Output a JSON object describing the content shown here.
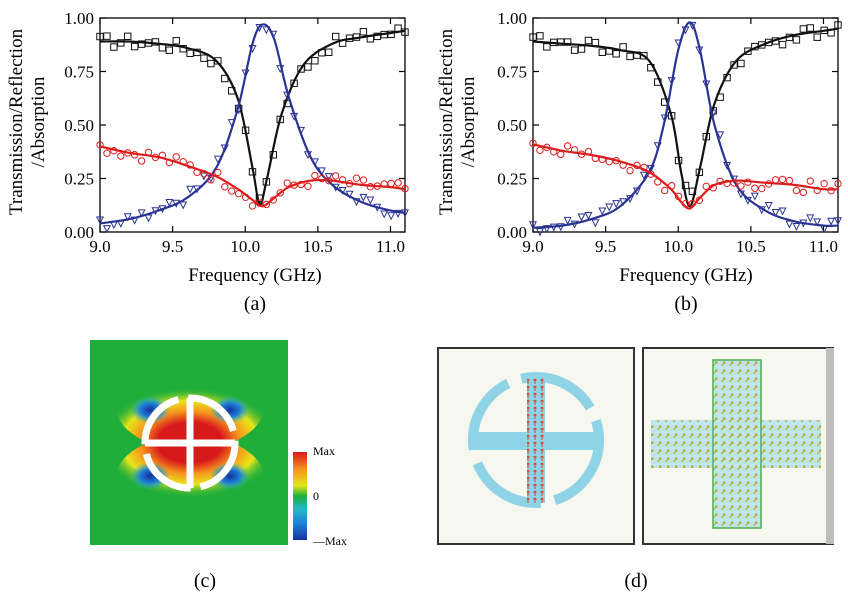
{
  "chart_data": [
    {
      "type": "line",
      "panel_label": "(a)",
      "xlabel": "Frequency (GHz)",
      "ylabel_line1": "Transmission/Reflection",
      "ylabel_line2": "/Absorption",
      "xlim": [
        9.0,
        11.1
      ],
      "ylim": [
        0.0,
        1.0
      ],
      "xticks": [
        "9.0",
        "9.5",
        "10.0",
        "10.5",
        "11.0"
      ],
      "yticks": [
        "0.00",
        "0.25",
        "0.50",
        "0.75",
        "1.00"
      ],
      "grid": false,
      "legend": "none",
      "series": [
        {
          "color": "#111111",
          "marker": "square",
          "x": [
            9.0,
            9.2,
            9.4,
            9.6,
            9.8,
            9.95,
            10.05,
            10.1,
            10.15,
            10.25,
            10.4,
            10.6,
            10.8,
            11.0,
            11.1
          ],
          "y": [
            0.89,
            0.89,
            0.88,
            0.86,
            0.8,
            0.62,
            0.3,
            0.13,
            0.25,
            0.55,
            0.78,
            0.88,
            0.91,
            0.93,
            0.94
          ]
        },
        {
          "color": "#2a3393",
          "marker": "triangle-down",
          "x": [
            9.0,
            9.2,
            9.4,
            9.6,
            9.8,
            9.95,
            10.05,
            10.12,
            10.2,
            10.3,
            10.45,
            10.6,
            10.8,
            11.0,
            11.1
          ],
          "y": [
            0.04,
            0.06,
            0.1,
            0.16,
            0.3,
            0.58,
            0.88,
            0.97,
            0.9,
            0.63,
            0.35,
            0.22,
            0.14,
            0.1,
            0.09
          ]
        },
        {
          "color": "#dd1c1c",
          "marker": "circle",
          "x": [
            9.0,
            9.2,
            9.4,
            9.6,
            9.8,
            9.95,
            10.05,
            10.12,
            10.2,
            10.3,
            10.45,
            10.6,
            10.8,
            11.0,
            11.1
          ],
          "y": [
            0.4,
            0.37,
            0.35,
            0.31,
            0.26,
            0.2,
            0.15,
            0.12,
            0.16,
            0.21,
            0.24,
            0.24,
            0.22,
            0.21,
            0.2
          ]
        }
      ]
    },
    {
      "type": "line",
      "panel_label": "(b)",
      "xlabel": "Frequency (GHz)",
      "ylabel_line1": "Transmission/Reflection",
      "ylabel_line2": "/Absorption",
      "xlim": [
        9.0,
        11.1
      ],
      "ylim": [
        0.0,
        1.0
      ],
      "xticks": [
        "9.0",
        "9.5",
        "10.0",
        "10.5",
        "11.0"
      ],
      "yticks": [
        "0.00",
        "0.25",
        "0.50",
        "0.75",
        "1.00"
      ],
      "grid": false,
      "legend": "none",
      "series": [
        {
          "color": "#111111",
          "marker": "square",
          "x": [
            9.0,
            9.2,
            9.4,
            9.6,
            9.8,
            9.95,
            10.02,
            10.08,
            10.15,
            10.25,
            10.4,
            10.6,
            10.8,
            11.0,
            11.1
          ],
          "y": [
            0.89,
            0.88,
            0.87,
            0.85,
            0.8,
            0.55,
            0.28,
            0.12,
            0.3,
            0.6,
            0.8,
            0.88,
            0.92,
            0.94,
            0.95
          ]
        },
        {
          "color": "#2a3393",
          "marker": "triangle-down",
          "x": [
            9.0,
            9.2,
            9.4,
            9.6,
            9.8,
            9.9,
            10.0,
            10.08,
            10.15,
            10.25,
            10.4,
            10.6,
            10.8,
            11.0,
            11.1
          ],
          "y": [
            0.02,
            0.03,
            0.06,
            0.12,
            0.28,
            0.5,
            0.85,
            0.98,
            0.85,
            0.5,
            0.22,
            0.1,
            0.05,
            0.03,
            0.03
          ]
        },
        {
          "color": "#dd1c1c",
          "marker": "circle",
          "x": [
            9.0,
            9.2,
            9.4,
            9.6,
            9.8,
            9.95,
            10.02,
            10.08,
            10.15,
            10.25,
            10.4,
            10.6,
            10.8,
            11.0,
            11.1
          ],
          "y": [
            0.41,
            0.38,
            0.36,
            0.33,
            0.28,
            0.2,
            0.14,
            0.11,
            0.16,
            0.22,
            0.24,
            0.23,
            0.22,
            0.2,
            0.2
          ]
        }
      ]
    }
  ],
  "panel_c": {
    "label": "(c)",
    "colorbar_max": "Max",
    "colorbar_zero": "0",
    "colorbar_min": "—Max"
  },
  "panel_d": {
    "label": "(d)"
  }
}
